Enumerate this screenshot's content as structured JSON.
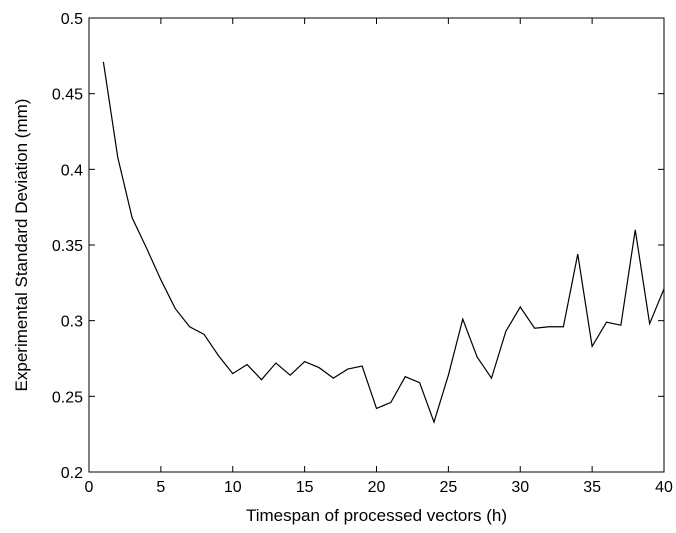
{
  "chart_data": {
    "type": "line",
    "title": "",
    "xlabel": "Timespan of processed vectors (h)",
    "ylabel": "Experimental Standard Deviation (mm)",
    "xlim": [
      0,
      40
    ],
    "ylim": [
      0.2,
      0.5
    ],
    "xticks": [
      0,
      5,
      10,
      15,
      20,
      25,
      30,
      35,
      40
    ],
    "yticks": [
      0.2,
      0.25,
      0.3,
      0.35,
      0.4,
      0.45,
      0.5
    ],
    "xtick_labels": [
      "0",
      "5",
      "10",
      "15",
      "20",
      "25",
      "30",
      "35",
      "40"
    ],
    "ytick_labels": [
      "0.2",
      "0.25",
      "0.3",
      "0.35",
      "0.4",
      "0.45",
      "0.5"
    ],
    "grid": false,
    "legend": "none",
    "series": [
      {
        "color": "#000000",
        "x": [
          1,
          2,
          3,
          4,
          5,
          6,
          7,
          8,
          9,
          10,
          11,
          12,
          13,
          14,
          15,
          16,
          17,
          18,
          19,
          20,
          21,
          22,
          23,
          24,
          25,
          26,
          27,
          28,
          29,
          30,
          31,
          32,
          33,
          34,
          35,
          36,
          37,
          38,
          39,
          40
        ],
        "y": [
          0.471,
          0.408,
          0.368,
          0.348,
          0.327,
          0.308,
          0.296,
          0.291,
          0.277,
          0.265,
          0.271,
          0.261,
          0.272,
          0.264,
          0.273,
          0.269,
          0.262,
          0.268,
          0.27,
          0.242,
          0.246,
          0.263,
          0.259,
          0.233,
          0.264,
          0.301,
          0.276,
          0.262,
          0.293,
          0.309,
          0.295,
          0.296,
          0.296,
          0.344,
          0.283,
          0.299,
          0.297,
          0.36,
          0.298,
          0.321
        ]
      }
    ]
  }
}
